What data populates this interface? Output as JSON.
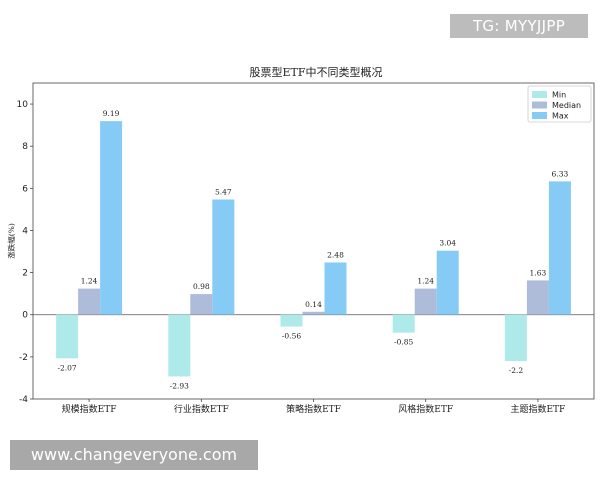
{
  "watermarks": {
    "top": "TG: MYYJJPP",
    "bottom": "www.changeveryone.com"
  },
  "chart_data": {
    "type": "bar",
    "title": "股票型ETF中不同类型概况",
    "xlabel": "",
    "ylabel": "涨跌幅(%)",
    "ylim": [
      -4,
      11
    ],
    "yticks": [
      -4,
      -2,
      0,
      2,
      4,
      6,
      8,
      10
    ],
    "grid": false,
    "legend_position": "top-right",
    "categories": [
      "规模指数ETF",
      "行业指数ETF",
      "策略指数ETF",
      "风格指数ETF",
      "主题指数ETF"
    ],
    "series": [
      {
        "name": "Min",
        "color": "#aeeaea",
        "values": [
          -2.07,
          -2.93,
          -0.56,
          -0.85,
          -2.2
        ]
      },
      {
        "name": "Median",
        "color": "#aebcda",
        "values": [
          1.24,
          0.98,
          0.14,
          1.24,
          1.63
        ]
      },
      {
        "name": "Max",
        "color": "#86cbf5",
        "values": [
          9.19,
          5.47,
          2.48,
          3.04,
          6.33
        ]
      }
    ],
    "value_labels": [
      [
        "-2.07",
        "-2.93",
        "-0.56",
        "-0.85",
        "-2.2"
      ],
      [
        "1.24",
        "0.98",
        "0.14",
        "1.24",
        "1.63"
      ],
      [
        "9.19",
        "5.47",
        "2.48",
        "3.04",
        "6.33"
      ]
    ]
  }
}
